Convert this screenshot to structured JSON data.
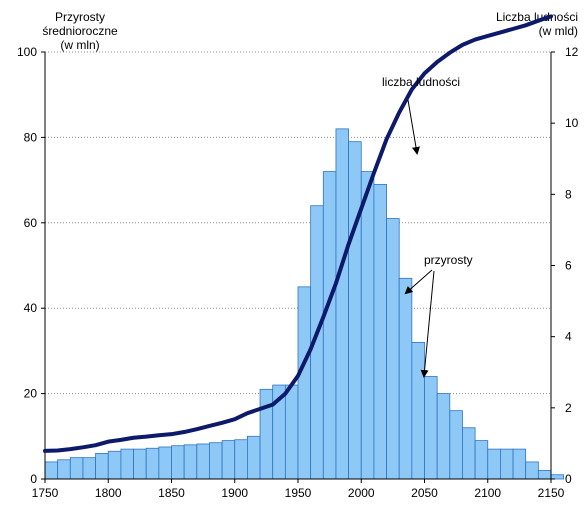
{
  "chart_data": {
    "type": "bar+line",
    "left_axis": {
      "label_lines": [
        "Przyrosty",
        "średnioroczne",
        "(w mln)"
      ],
      "ylim": [
        0,
        100
      ],
      "ticks": [
        0,
        20,
        40,
        60,
        80,
        100
      ]
    },
    "right_axis": {
      "label_lines": [
        "Liczba ludności",
        "(w mld)"
      ],
      "ylim": [
        0,
        12
      ],
      "ticks": [
        0,
        2,
        4,
        6,
        8,
        10,
        12
      ]
    },
    "x_axis": {
      "xlim": [
        1750,
        2150
      ],
      "ticks": [
        1750,
        1800,
        1850,
        1900,
        1950,
        2000,
        2050,
        2100,
        2150
      ]
    },
    "grid": "horizontal dotted",
    "bar_color": "#8ec8f6",
    "bar_edge": "#2f74c0",
    "line_color": "#0d1a6b",
    "bars": {
      "name": "przyrosty",
      "bin_width": 10,
      "start": 1750,
      "values": [
        4,
        4.5,
        5,
        5,
        6,
        6.5,
        7,
        7,
        7.2,
        7.5,
        7.8,
        8,
        8.2,
        8.5,
        9,
        9.2,
        10,
        21,
        22,
        22,
        45,
        64,
        72,
        82,
        79,
        72,
        69,
        61,
        47,
        32,
        24,
        20,
        16,
        12,
        9,
        7,
        7,
        7,
        4,
        2,
        1
      ]
    },
    "line": {
      "name": "liczba ludności",
      "x": [
        1750,
        1760,
        1770,
        1780,
        1790,
        1800,
        1810,
        1820,
        1830,
        1840,
        1850,
        1860,
        1870,
        1880,
        1890,
        1900,
        1910,
        1920,
        1930,
        1940,
        1950,
        1960,
        1970,
        1980,
        1990,
        2000,
        2010,
        2020,
        2030,
        2040,
        2050,
        2060,
        2070,
        2080,
        2090,
        2100,
        2110,
        2120,
        2130,
        2140,
        2150
      ],
      "y": [
        0.79,
        0.8,
        0.84,
        0.89,
        0.95,
        1.05,
        1.1,
        1.16,
        1.19,
        1.23,
        1.26,
        1.32,
        1.4,
        1.49,
        1.58,
        1.68,
        1.85,
        1.97,
        2.09,
        2.4,
        2.9,
        3.65,
        4.55,
        5.5,
        6.6,
        7.6,
        8.6,
        9.55,
        10.3,
        10.95,
        11.4,
        11.72,
        11.98,
        12.2,
        12.35,
        12.45,
        12.55,
        12.65,
        12.75,
        12.88,
        13.0
      ]
    },
    "annotations": [
      {
        "text": "liczba ludności"
      },
      {
        "text": "przyrosty"
      }
    ]
  }
}
